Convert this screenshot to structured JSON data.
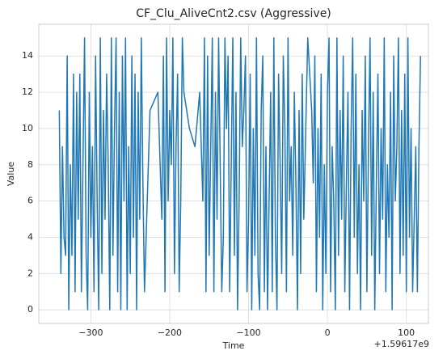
{
  "chart_data": {
    "type": "line",
    "title": "CF_Clu_AliveCnt2.csv (Aggressive)",
    "xlabel": "Time",
    "ylabel": "Value",
    "annotation": "+1.59617e9",
    "color": "#1f77b4",
    "grid": true,
    "xlim": [
      -366,
      128
    ],
    "ylim": [
      -0.75,
      15.75
    ],
    "xticks": [
      {
        "value": -300,
        "label": "−300"
      },
      {
        "value": -200,
        "label": "−200"
      },
      {
        "value": -100,
        "label": "−100"
      },
      0,
      100
    ],
    "yticks": [
      0,
      2,
      4,
      6,
      8,
      10,
      12,
      14
    ],
    "x": [
      -340,
      -338,
      -336,
      -334,
      -332,
      -330,
      -328,
      -326,
      -324,
      -322,
      -320,
      -318,
      -316,
      -314,
      -312,
      -310,
      -308,
      -306,
      -304,
      -302,
      -300,
      -298,
      -296,
      -294,
      -292,
      -290,
      -288,
      -286,
      -284,
      -282,
      -280,
      -278,
      -276,
      -274,
      -272,
      -270,
      -268,
      -266,
      -264,
      -262,
      -260,
      -258,
      -256,
      -254,
      -252,
      -250,
      -248,
      -246,
      -244,
      -242,
      -240,
      -238,
      -236,
      -234,
      -232,
      -225,
      -215,
      -210,
      -208,
      -206,
      -204,
      -202,
      -200,
      -198,
      -196,
      -194,
      -192,
      -190,
      -188,
      -186,
      -184,
      -182,
      -175,
      -168,
      -162,
      -158,
      -156,
      -154,
      -152,
      -150,
      -148,
      -146,
      -144,
      -142,
      -140,
      -138,
      -136,
      -134,
      -132,
      -130,
      -128,
      -126,
      -124,
      -122,
      -120,
      -118,
      -116,
      -114,
      -112,
      -110,
      -108,
      -106,
      -104,
      -102,
      -100,
      -98,
      -96,
      -94,
      -92,
      -90,
      -88,
      -86,
      -84,
      -82,
      -80,
      -78,
      -76,
      -74,
      -72,
      -70,
      -68,
      -66,
      -64,
      -62,
      -60,
      -58,
      -56,
      -54,
      -52,
      -50,
      -48,
      -46,
      -44,
      -42,
      -40,
      -38,
      -36,
      -34,
      -32,
      -30,
      -25,
      -20,
      -18,
      -16,
      -14,
      -12,
      -10,
      -8,
      -6,
      -4,
      -2,
      0,
      2,
      4,
      6,
      8,
      10,
      12,
      14,
      16,
      18,
      20,
      22,
      24,
      26,
      28,
      30,
      32,
      34,
      36,
      38,
      40,
      42,
      44,
      46,
      48,
      50,
      52,
      54,
      56,
      58,
      60,
      62,
      64,
      66,
      68,
      70,
      72,
      74,
      76,
      78,
      80,
      82,
      84,
      86,
      88,
      90,
      92,
      94,
      96,
      98,
      100,
      102,
      104,
      106,
      108,
      110,
      112,
      114,
      116,
      118
    ],
    "values": [
      11,
      2,
      9,
      4,
      3,
      14,
      0,
      8,
      3,
      13,
      1,
      12,
      5,
      13,
      1,
      8,
      15,
      3,
      0,
      12,
      4,
      9,
      1,
      14,
      6,
      0,
      15,
      2,
      11,
      5,
      13,
      8,
      0,
      15,
      3,
      10,
      15,
      1,
      12,
      0,
      14,
      6,
      15,
      0,
      9,
      2,
      14,
      4,
      13,
      0,
      12,
      5,
      15,
      7,
      1,
      11,
      12,
      5,
      14,
      1,
      15,
      6,
      11,
      8,
      15,
      2,
      9,
      13,
      1,
      6,
      15,
      12,
      10,
      9,
      12,
      6,
      15,
      1,
      14,
      3,
      9,
      15,
      1,
      12,
      5,
      15,
      8,
      1,
      4,
      15,
      10,
      14,
      1,
      8,
      15,
      3,
      12,
      0,
      6,
      15,
      9,
      11,
      14,
      1,
      5,
      13,
      0,
      10,
      3,
      15,
      2,
      0,
      11,
      14,
      1,
      9,
      0,
      6,
      12,
      1,
      15,
      4,
      0,
      13,
      8,
      2,
      14,
      10,
      1,
      15,
      6,
      9,
      3,
      12,
      7,
      0,
      11,
      2,
      13,
      5,
      15,
      11,
      7,
      14,
      1,
      10,
      4,
      13,
      0,
      8,
      2,
      12,
      15,
      1,
      9,
      6,
      0,
      15,
      3,
      11,
      5,
      14,
      1,
      7,
      12,
      0,
      10,
      15,
      4,
      13,
      2,
      8,
      0,
      11,
      6,
      14,
      1,
      9,
      15,
      3,
      12,
      0,
      7,
      13,
      2,
      10,
      5,
      15,
      1,
      8,
      4,
      12,
      0,
      14,
      6,
      9,
      15,
      2,
      11,
      3,
      13,
      1,
      15,
      4,
      10,
      1,
      5,
      9,
      1,
      9,
      14
    ]
  }
}
